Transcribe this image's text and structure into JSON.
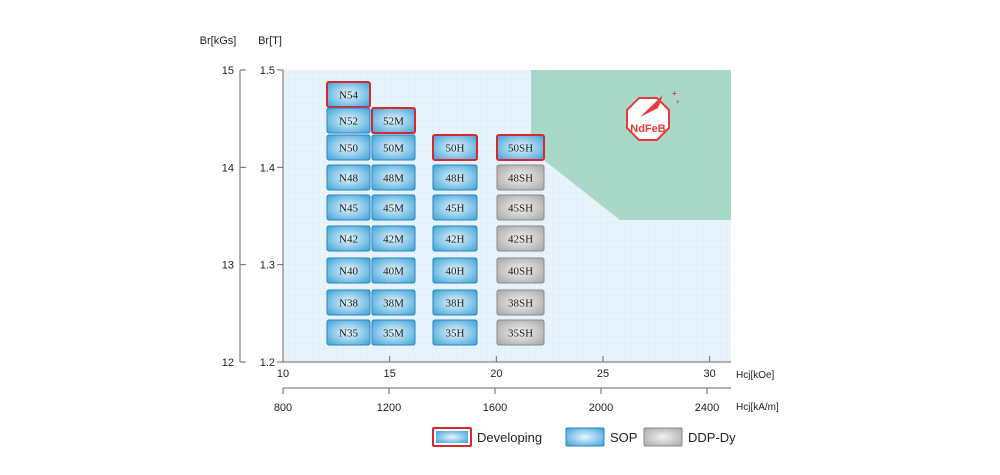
{
  "chart_data": {
    "type": "table",
    "axes": {
      "y_primary": {
        "label": "Br[kGs]",
        "range": [
          12,
          15
        ],
        "ticks": [
          "12",
          "13",
          "14",
          "15"
        ]
      },
      "y_secondary": {
        "label": "Br[T]",
        "range": [
          1.2,
          1.5
        ],
        "ticks": [
          "1.2",
          "1.3",
          "1.4",
          "1.5"
        ]
      },
      "x_primary": {
        "label": "Hcj[kOe]",
        "range": [
          10,
          31
        ],
        "ticks": [
          "10",
          "15",
          "20",
          "25",
          "30"
        ]
      },
      "x_secondary": {
        "label": "Hcj[kA/m]",
        "ticks": [
          "800",
          "1200",
          "1600",
          "2000",
          "2400"
        ]
      },
      "grid": true
    },
    "columns": [
      {
        "grades": [
          {
            "name": "N54",
            "status": "developing"
          },
          {
            "name": "N52",
            "status": "sop"
          },
          {
            "name": "N50",
            "status": "sop"
          },
          {
            "name": "N48",
            "status": "sop"
          },
          {
            "name": "N45",
            "status": "sop"
          },
          {
            "name": "N42",
            "status": "sop"
          },
          {
            "name": "N40",
            "status": "sop"
          },
          {
            "name": "N38",
            "status": "sop"
          },
          {
            "name": "N35",
            "status": "sop"
          }
        ]
      },
      {
        "grades": [
          {
            "name": "52M",
            "status": "developing"
          },
          {
            "name": "50M",
            "status": "sop"
          },
          {
            "name": "48M",
            "status": "sop"
          },
          {
            "name": "45M",
            "status": "sop"
          },
          {
            "name": "42M",
            "status": "sop"
          },
          {
            "name": "40M",
            "status": "sop"
          },
          {
            "name": "38M",
            "status": "sop"
          },
          {
            "name": "35M",
            "status": "sop"
          }
        ]
      },
      {
        "grades": [
          {
            "name": "50H",
            "status": "developing"
          },
          {
            "name": "48H",
            "status": "sop"
          },
          {
            "name": "45H",
            "status": "sop"
          },
          {
            "name": "42H",
            "status": "sop"
          },
          {
            "name": "40H",
            "status": "sop"
          },
          {
            "name": "38H",
            "status": "sop"
          },
          {
            "name": "35H",
            "status": "sop"
          }
        ]
      },
      {
        "grades": [
          {
            "name": "50SH",
            "status": "developing"
          },
          {
            "name": "48SH",
            "status": "ddp"
          },
          {
            "name": "45SH",
            "status": "ddp"
          },
          {
            "name": "42SH",
            "status": "ddp"
          },
          {
            "name": "40SH",
            "status": "ddp"
          },
          {
            "name": "38SH",
            "status": "ddp"
          },
          {
            "name": "35SH",
            "status": "ddp"
          }
        ]
      }
    ],
    "legend": {
      "placement": "bottom-right",
      "items": [
        {
          "key": "developing",
          "label": "Developing"
        },
        {
          "key": "sop",
          "label": "SOP"
        },
        {
          "key": "ddp",
          "label": "DDP-Dy"
        }
      ]
    },
    "badge_text": "NdFeB",
    "colors": {
      "plot_bg": "#e8f4fb",
      "grid": "#c9dbe6",
      "region": "#a9d8c8",
      "sop_edge": "#2e9bd6",
      "sop_center": "#e8f6fd",
      "ddp_edge": "#a0a0a0",
      "ddp_center": "#f2f2f2",
      "developing_border": "#d7282f",
      "badge": "#e83a3a"
    }
  }
}
